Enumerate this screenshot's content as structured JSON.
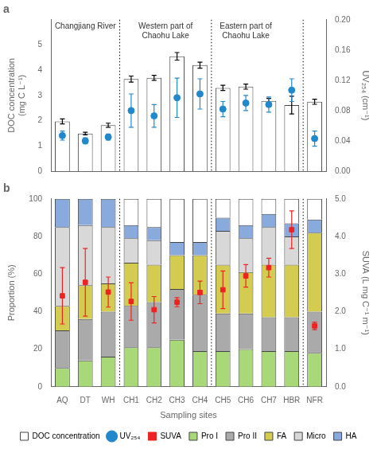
{
  "chart_data": [
    {
      "type": "bar",
      "title": "a",
      "categories": [
        "AQ",
        "DT",
        "WH",
        "CH1",
        "CH2",
        "CH3",
        "CH4",
        "CH5",
        "CH6",
        "CH7",
        "HBR",
        "NFR"
      ],
      "y_label": "DOC concentration\n(mg C L⁻¹)",
      "y2_label": "UV₂₅₄ (cm⁻¹)",
      "ylim": [
        0,
        6
      ],
      "yticks": [
        0,
        1,
        2,
        3,
        4,
        5
      ],
      "y2lim": [
        0.0,
        0.2
      ],
      "y2ticks": [
        {
          "value": 0.0,
          "label": "0.00"
        },
        0.04,
        0.08,
        0.12,
        0.16,
        {
          "value": 0.2,
          "label": "0.20"
        }
      ],
      "grid": false,
      "tick_labels": "y",
      "annotations": [
        "Changjiang River",
        "Western part of\nChaohu Lake",
        "Eastern part of\nChaohu Lake"
      ],
      "series": [
        {
          "name": "DOC concentration",
          "type": "bar",
          "color": "#ffffff",
          "values": [
            1.97,
            1.49,
            1.82,
            3.65,
            3.7,
            4.55,
            4.2,
            3.3,
            3.35,
            2.78,
            2.62,
            2.75
          ],
          "errors": [
            0.1,
            0.05,
            0.08,
            0.12,
            0.1,
            0.15,
            0.12,
            0.1,
            0.1,
            0.1,
            0.35,
            0.1
          ]
        },
        {
          "name": "UV₂₅₄",
          "type": "scatter",
          "marker": "circle",
          "color": "#2288cc",
          "axis": "y2",
          "values": [
            0.047,
            0.04,
            0.045,
            0.08,
            0.073,
            0.097,
            0.102,
            0.082,
            0.09,
            0.088,
            0.107,
            0.043
          ],
          "errors": [
            0.006,
            0.004,
            0.004,
            0.022,
            0.015,
            0.026,
            0.02,
            0.01,
            0.01,
            0.01,
            0.015,
            0.01
          ]
        }
      ]
    },
    {
      "type": "bar",
      "title": "b",
      "stacked": true,
      "categories": [
        "AQ",
        "DT",
        "WH",
        "CH1",
        "CH2",
        "CH3",
        "CH4",
        "CH5",
        "CH6",
        "CH7",
        "HBR",
        "NFR"
      ],
      "x_label": "Sampling sites",
      "y_label": "Proportion (%)",
      "y2_label": "SUVA (L mg C⁻¹ m⁻¹)",
      "ylim": [
        0,
        100
      ],
      "yticks": [
        0,
        20,
        40,
        60,
        80,
        100
      ],
      "y2lim": [
        0.0,
        5.0
      ],
      "y2ticks": [
        {
          "value": 0.0,
          "label": "0.0"
        },
        {
          "value": 1.0,
          "label": "1.0"
        },
        {
          "value": 2.0,
          "label": "2.0"
        },
        {
          "value": 3.0,
          "label": "3.0"
        },
        {
          "value": 4.0,
          "label": "4.0"
        },
        {
          "value": 5.0,
          "label": "5.0"
        }
      ],
      "grid": false,
      "legend": "bottom",
      "series": [
        {
          "name": "Pro I",
          "color": "#a8d878",
          "values": [
            10,
            14,
            16,
            21,
            21,
            25,
            19,
            19,
            20,
            19,
            19,
            18
          ]
        },
        {
          "name": "Pro II",
          "color": "#aaaaaa",
          "values": [
            20,
            22,
            24,
            22,
            24,
            27,
            30,
            20,
            19,
            18,
            18,
            22
          ]
        },
        {
          "name": "FA",
          "color": "#d4cc50",
          "values": [
            13,
            18,
            15,
            23,
            20,
            18,
            21,
            26,
            22,
            28,
            28,
            42
          ]
        },
        {
          "name": "Micro",
          "color": "#d8d8d8",
          "values": [
            42,
            32,
            30,
            13,
            13,
            0,
            0,
            18,
            18,
            20,
            15,
            0
          ]
        },
        {
          "name": "HA",
          "color": "#88aadd",
          "values": [
            15,
            14,
            15,
            7,
            7,
            7,
            7,
            7,
            7,
            7,
            7,
            7
          ]
        },
        {
          "color": "#ffffff",
          "values": [
            0,
            0,
            0,
            14,
            15,
            23,
            23,
            10,
            14,
            8,
            13,
            11
          ]
        },
        {
          "name": "SUVA",
          "type": "scatter",
          "marker": "square",
          "color": "#ee2222",
          "axis": "y2",
          "values": [
            2.42,
            2.78,
            2.52,
            2.27,
            2.05,
            2.25,
            2.51,
            2.58,
            2.95,
            3.17,
            4.18,
            1.62
          ],
          "errors": [
            0.75,
            0.9,
            0.4,
            0.5,
            0.35,
            0.12,
            0.3,
            0.5,
            0.3,
            0.25,
            0.5,
            0.1
          ]
        }
      ]
    }
  ]
}
